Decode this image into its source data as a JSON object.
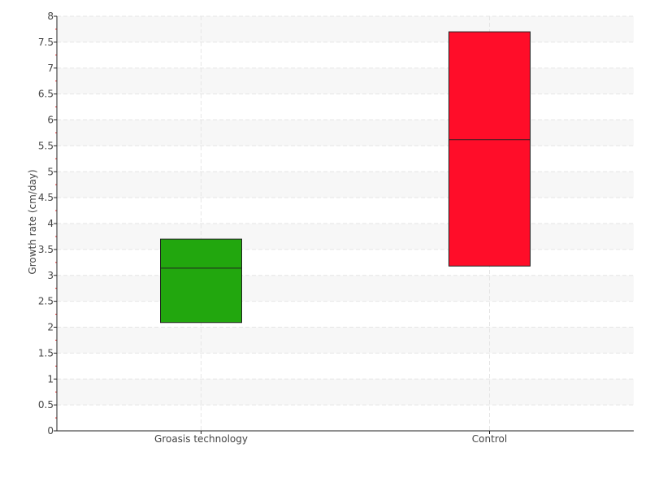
{
  "chart_data": {
    "type": "box",
    "title": "",
    "xlabel": "",
    "ylabel": "Growth rate (cm/day)",
    "ylim": [
      0,
      8
    ],
    "yticks": [
      "0",
      "0.5",
      "1",
      "1.5",
      "2",
      "2.5",
      "3",
      "3.5",
      "4",
      "4.5",
      "5",
      "5.5",
      "6",
      "6.5",
      "7",
      "7.5",
      "8"
    ],
    "grid": true,
    "categories": [
      "Groasis technology",
      "Control"
    ],
    "boxes": [
      {
        "category": "Groasis technology",
        "q1": 2.09,
        "median": 3.14,
        "q3": 3.7,
        "color": "#22a70e"
      },
      {
        "category": "Control",
        "q1": 3.18,
        "median": 5.62,
        "q3": 7.7,
        "color": "#ff0d29"
      }
    ]
  }
}
